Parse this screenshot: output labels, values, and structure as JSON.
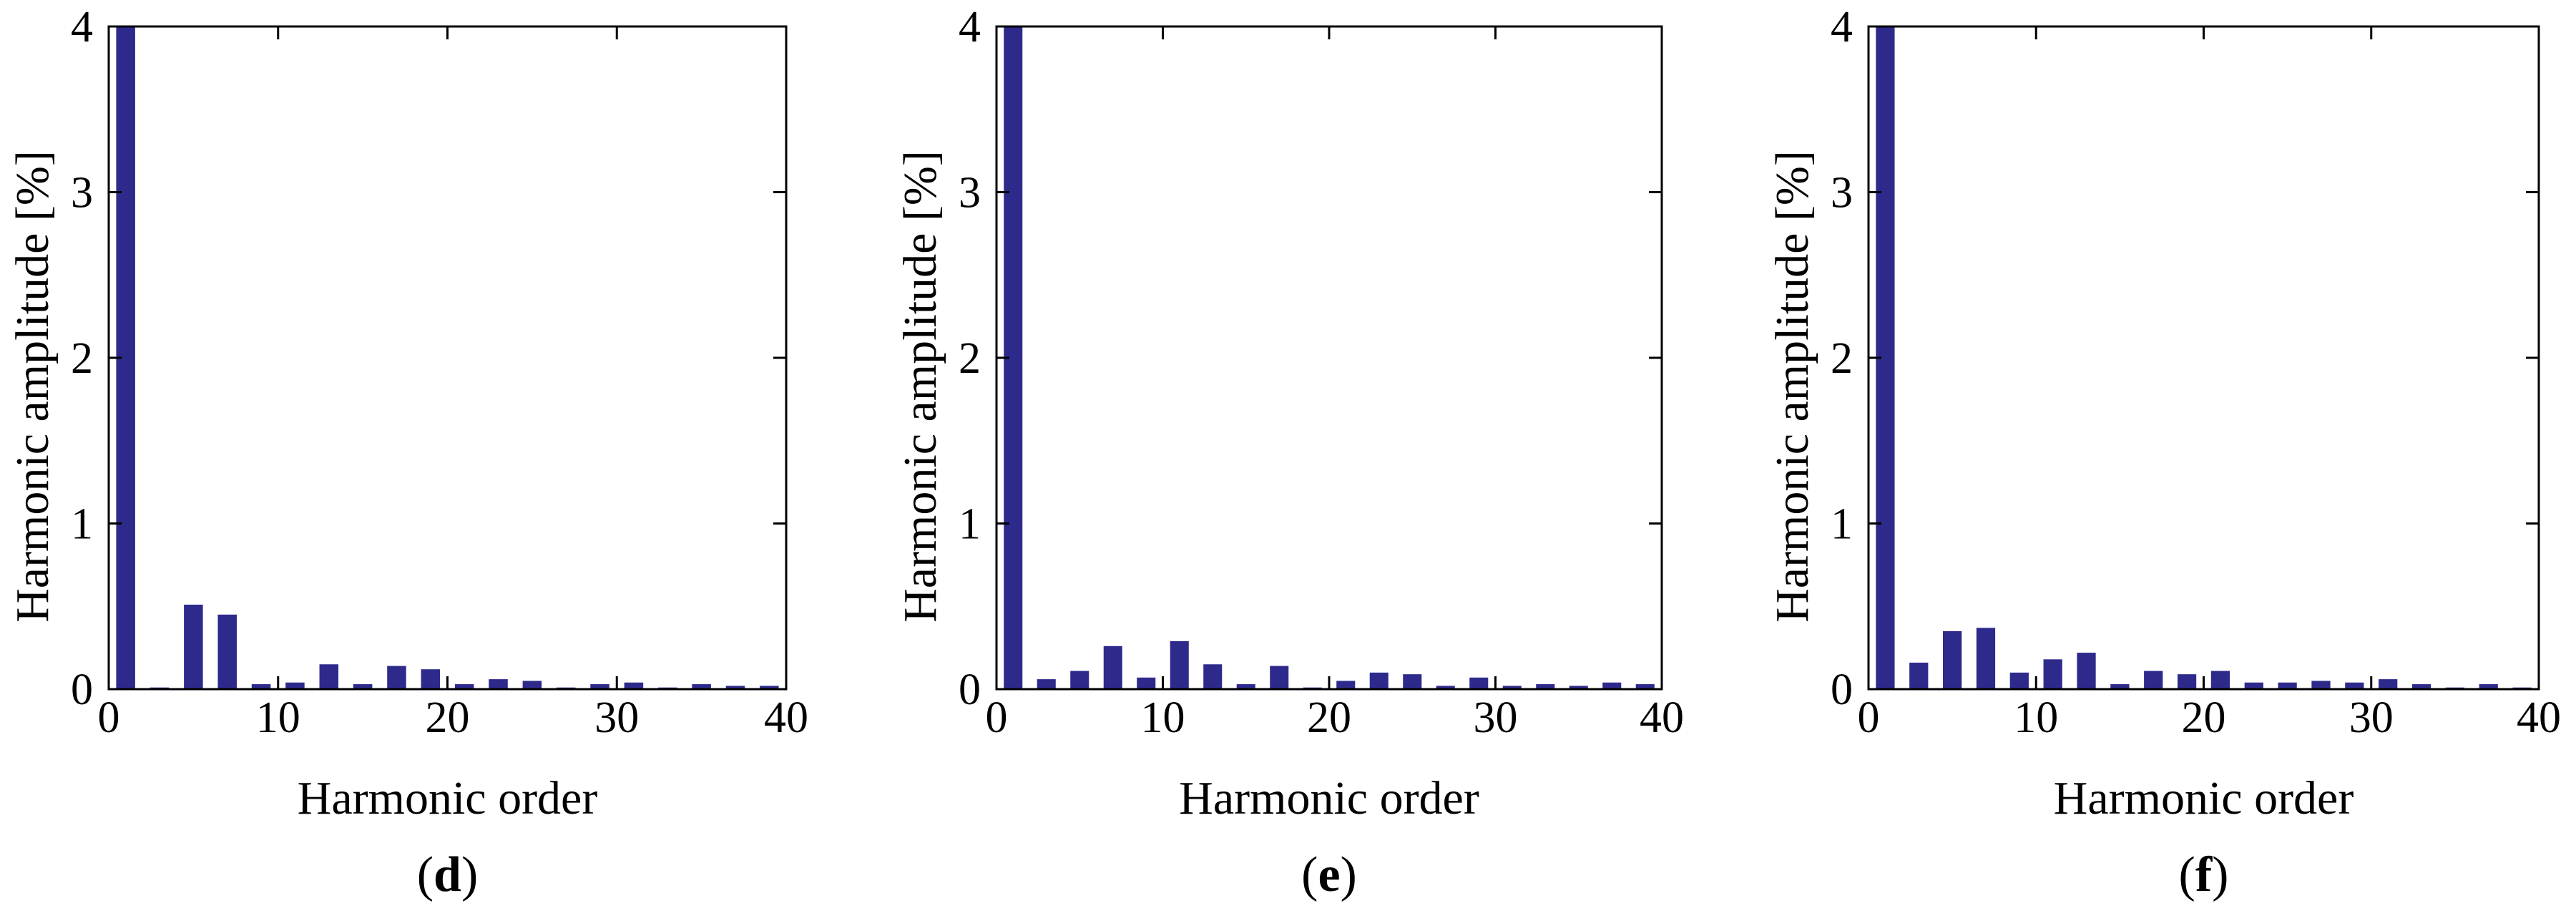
{
  "colors": {
    "bar": "#2E2A8C",
    "axis": "#000000",
    "background": "#ffffff"
  },
  "chart_data": [
    {
      "panel_label": "d",
      "type": "bar",
      "xlabel": "Harmonic order",
      "ylabel": "Harmonic amplitude [%]",
      "xlim": [
        0,
        40
      ],
      "ylim": [
        0,
        4
      ],
      "xticks": [
        "0",
        "10",
        "20",
        "30",
        "40"
      ],
      "yticks": [
        "0",
        "1",
        "2",
        "3",
        "4"
      ],
      "grid": false,
      "categories": [
        1,
        3,
        5,
        7,
        9,
        11,
        13,
        15,
        17,
        19,
        21,
        23,
        25,
        27,
        29,
        31,
        33,
        35,
        37,
        39
      ],
      "values": [
        4.0,
        0.01,
        0.51,
        0.45,
        0.03,
        0.04,
        0.15,
        0.03,
        0.14,
        0.12,
        0.03,
        0.06,
        0.05,
        0.01,
        0.03,
        0.04,
        0.01,
        0.03,
        0.02,
        0.02
      ]
    },
    {
      "panel_label": "e",
      "type": "bar",
      "xlabel": "Harmonic order",
      "ylabel": "Harmonic amplitude [%]",
      "xlim": [
        0,
        40
      ],
      "ylim": [
        0,
        4
      ],
      "xticks": [
        "0",
        "10",
        "20",
        "30",
        "40"
      ],
      "yticks": [
        "0",
        "1",
        "2",
        "3",
        "4"
      ],
      "grid": false,
      "categories": [
        1,
        3,
        5,
        7,
        9,
        11,
        13,
        15,
        17,
        19,
        21,
        23,
        25,
        27,
        29,
        31,
        33,
        35,
        37,
        39
      ],
      "values": [
        4.0,
        0.06,
        0.11,
        0.26,
        0.07,
        0.29,
        0.15,
        0.03,
        0.14,
        0.01,
        0.05,
        0.1,
        0.09,
        0.02,
        0.07,
        0.02,
        0.03,
        0.02,
        0.04,
        0.03
      ]
    },
    {
      "panel_label": "f",
      "type": "bar",
      "xlabel": "Harmonic order",
      "ylabel": "Harmonic amplitude [%]",
      "xlim": [
        0,
        40
      ],
      "ylim": [
        0,
        4
      ],
      "xticks": [
        "0",
        "10",
        "20",
        "30",
        "40"
      ],
      "yticks": [
        "0",
        "1",
        "2",
        "3",
        "4"
      ],
      "grid": false,
      "categories": [
        1,
        3,
        5,
        7,
        9,
        11,
        13,
        15,
        17,
        19,
        21,
        23,
        25,
        27,
        29,
        31,
        33,
        35,
        37,
        39
      ],
      "values": [
        4.0,
        0.16,
        0.35,
        0.37,
        0.1,
        0.18,
        0.22,
        0.03,
        0.11,
        0.09,
        0.11,
        0.04,
        0.04,
        0.05,
        0.04,
        0.06,
        0.03,
        0.01,
        0.03,
        0.01
      ]
    }
  ]
}
